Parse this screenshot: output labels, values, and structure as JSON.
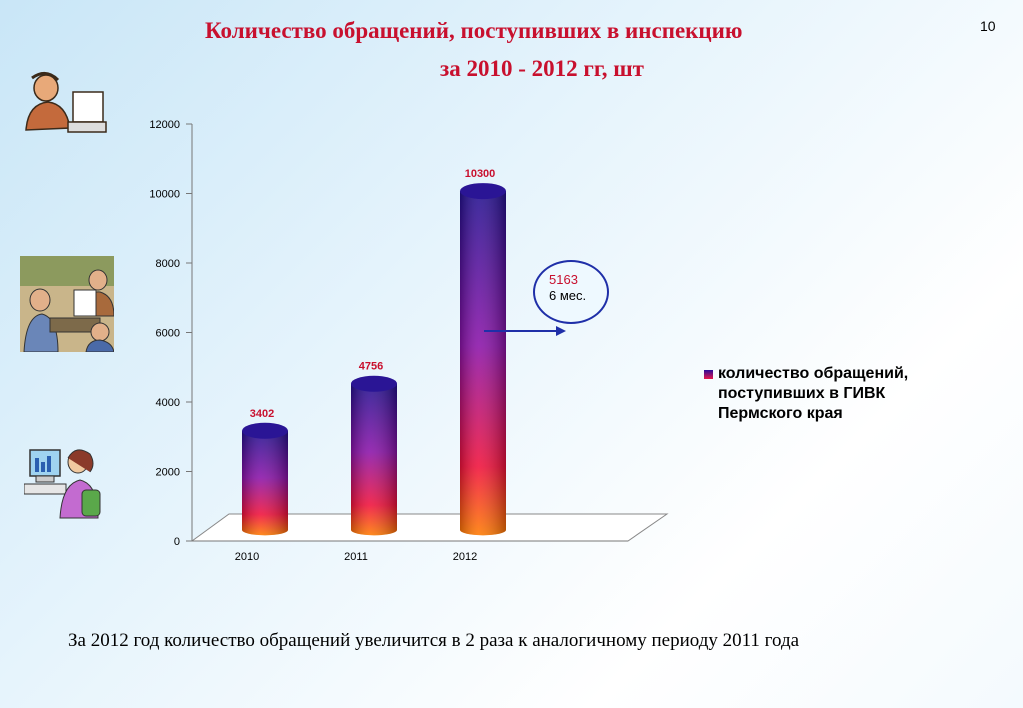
{
  "slide": {
    "title_line1": "Количество обращений, поступивших в инспекцию",
    "title_line2": "за 2010 - 2012 гг, шт",
    "page_number": "10",
    "footer": "За 2012 год количество обращений увеличится в 2 раза к аналогичному периоду 2011 года"
  },
  "callout": {
    "value": "5163",
    "text": "6 мес."
  },
  "chart_data": {
    "type": "bar",
    "categories": [
      "2010",
      "2011",
      "2012"
    ],
    "series": [
      {
        "name": "количество обращений, поступивших в ГИВК Пермского края",
        "values": [
          3402,
          4756,
          10300
        ]
      }
    ],
    "data_labels": [
      "3402",
      "4756",
      "10300"
    ],
    "yticks": [
      0,
      2000,
      4000,
      6000,
      8000,
      10000,
      12000
    ],
    "ylim": [
      0,
      12000
    ],
    "legend_position": "right",
    "grid": false,
    "colors": {
      "bar_top": "#22108f",
      "bar_bottom": "#ff6a00",
      "label": "#c8102e"
    }
  }
}
